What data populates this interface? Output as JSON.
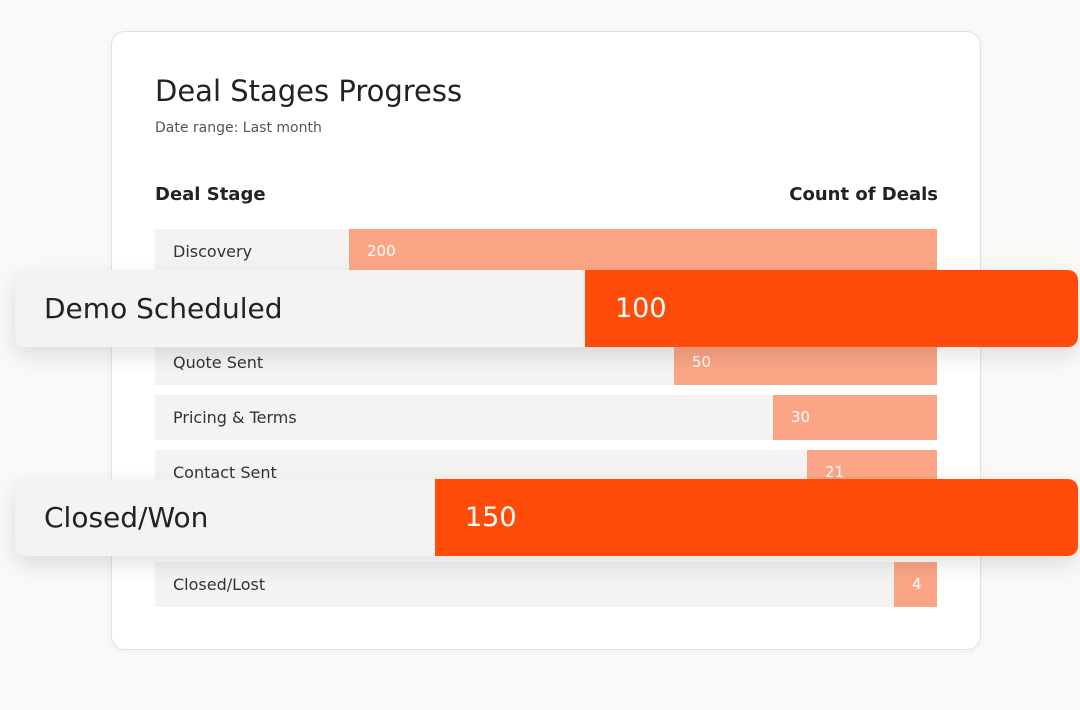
{
  "card": {
    "title": "Deal Stages Progress",
    "subtitle": "Date range: Last month",
    "column_headers": [
      "Deal Stage",
      "Count of Deals"
    ],
    "rows": [
      {
        "label": "Discovery",
        "value": "200"
      },
      {
        "label": "Quote Sent",
        "value": "50"
      },
      {
        "label": "Pricing & Terms",
        "value": "30"
      },
      {
        "label": "Contact Sent",
        "value": "21"
      },
      {
        "label": "Closed/Lost",
        "value": "4"
      }
    ]
  },
  "highlights": [
    {
      "label": "Demo Scheduled",
      "value": "100"
    },
    {
      "label": "Closed/Won",
      "value": "150"
    }
  ]
}
